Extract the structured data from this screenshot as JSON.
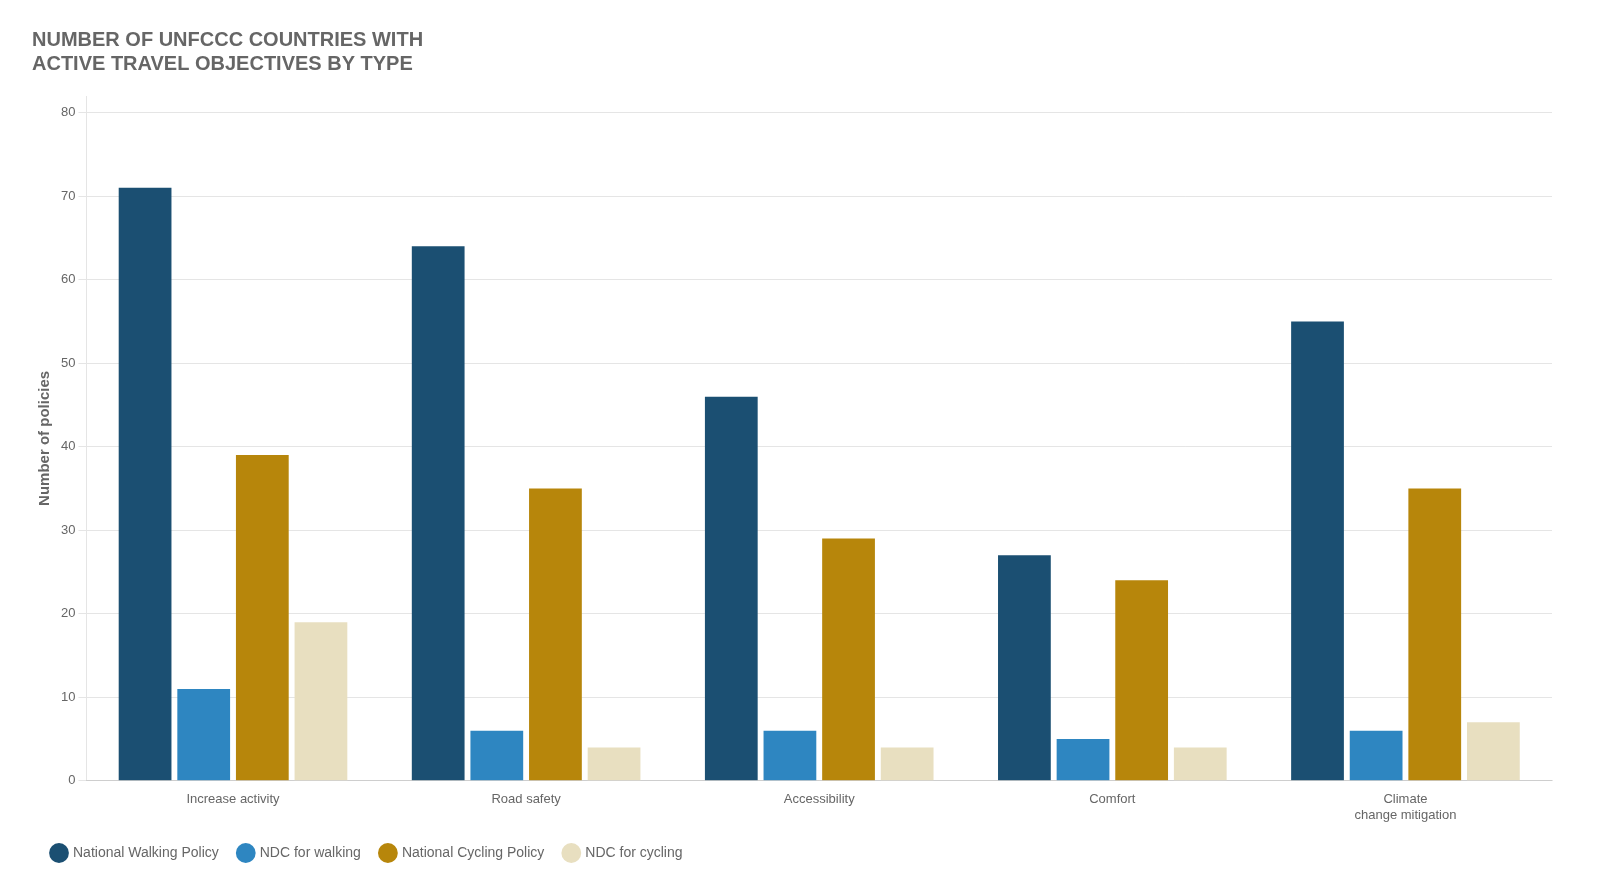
{
  "chart_data": {
    "type": "bar",
    "title": "NUMBER OF UNFCCC COUNTRIES WITH\nACTIVE TRAVEL OBJECTIVES BY TYPE",
    "y_label": "Number of policies",
    "categories": [
      "Increase activity",
      "Road safety",
      "Accessibility",
      "Comfort",
      "Climate\nchange mitigation"
    ],
    "series": [
      {
        "name": "National Walking Policy",
        "color": "#1b4f72",
        "values": [
          71,
          64,
          46,
          27,
          55
        ]
      },
      {
        "name": "NDC for walking",
        "color": "#2e86c1",
        "values": [
          11,
          6,
          6,
          5,
          6
        ]
      },
      {
        "name": "National Cycling Policy",
        "color": "#b7860b",
        "values": [
          39,
          35,
          29,
          24,
          35
        ]
      },
      {
        "name": "NDC for cycling",
        "color": "#e8dfc0",
        "values": [
          19,
          4,
          4,
          4,
          7
        ]
      }
    ],
    "ylim": [
      0,
      82
    ],
    "yticks": [
      0,
      10,
      20,
      30,
      40,
      50,
      60,
      70,
      80
    ],
    "grid": true,
    "legend": "bottom"
  }
}
